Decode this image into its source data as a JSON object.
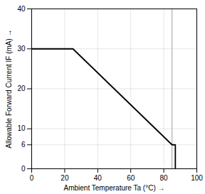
{
  "chart_data": {
    "type": "line",
    "x": [
      0,
      25,
      85,
      87,
      87
    ],
    "values": [
      30,
      30,
      6,
      6,
      0
    ],
    "color": "#000000",
    "xlabel": "Ambient Temperature Ta (°C)",
    "ylabel": "Allowable Forward Current IF (mA)",
    "xlim": [
      0,
      100
    ],
    "ylim": [
      0,
      40
    ],
    "xticks": [
      0,
      20,
      40,
      60,
      80,
      100
    ],
    "yticks": [
      0,
      6,
      10,
      20,
      30,
      40
    ],
    "grid": true,
    "vlines": [
      {
        "x": 85,
        "color": "#a0a0a0"
      }
    ]
  }
}
